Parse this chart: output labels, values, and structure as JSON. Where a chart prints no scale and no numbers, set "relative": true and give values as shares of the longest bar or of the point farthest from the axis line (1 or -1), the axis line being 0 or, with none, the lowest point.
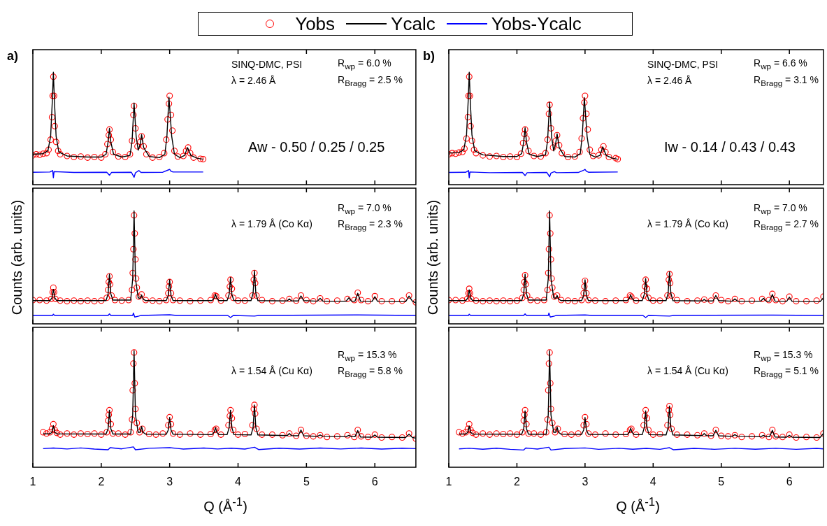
{
  "chart_data": [
    {
      "type": "line",
      "relative": true,
      "xlim": [
        1,
        6.6
      ],
      "xticks": [
        1,
        2,
        3,
        4,
        5,
        6
      ],
      "tick_labels": false,
      "legend": "top",
      "annotations": [
        "a)",
        "SINQ-DMC, PSI",
        "λ = 2.46 Å",
        "R$_{wp}$ = 6.0 %",
        "R$_{Bragg}$ = 2.5 %",
        "Aw - 0.50 / 0.25 / 0.25"
      ],
      "series": [
        {
          "name": "Yobs",
          "type": "scatter",
          "marker": "circle",
          "color": "#ff0000",
          "x": [
            1.0,
            1.05,
            1.1,
            1.15,
            1.2,
            1.23,
            1.26,
            1.28,
            1.29,
            1.3,
            1.31,
            1.32,
            1.34,
            1.37,
            1.4,
            1.5,
            1.6,
            1.7,
            1.8,
            1.9,
            2.0,
            2.06,
            2.09,
            2.11,
            2.12,
            2.14,
            2.17,
            2.25,
            2.35,
            2.42,
            2.45,
            2.47,
            2.48,
            2.5,
            2.53,
            2.57,
            2.59,
            2.62,
            2.66,
            2.75,
            2.85,
            2.92,
            2.95,
            2.97,
            2.99,
            3.0,
            3.02,
            3.04,
            3.07,
            3.12,
            3.2,
            3.24,
            3.27,
            3.3,
            3.35,
            3.45,
            3.49
          ],
          "values": [
            0.26,
            0.27,
            0.265,
            0.275,
            0.28,
            0.31,
            0.4,
            0.6,
            0.79,
            0.96,
            0.79,
            0.52,
            0.38,
            0.3,
            0.27,
            0.255,
            0.245,
            0.25,
            0.24,
            0.245,
            0.24,
            0.27,
            0.36,
            0.44,
            0.49,
            0.4,
            0.29,
            0.25,
            0.245,
            0.27,
            0.39,
            0.62,
            0.7,
            0.5,
            0.34,
            0.38,
            0.43,
            0.34,
            0.27,
            0.24,
            0.245,
            0.28,
            0.4,
            0.58,
            0.72,
            0.79,
            0.62,
            0.48,
            0.3,
            0.25,
            0.255,
            0.3,
            0.33,
            0.28,
            0.24,
            0.23,
            0.226
          ]
        },
        {
          "name": "Ycalc",
          "type": "line",
          "color": "#000000",
          "x": [
            1.0,
            1.15,
            1.22,
            1.26,
            1.285,
            1.3,
            1.315,
            1.34,
            1.38,
            1.5,
            1.8,
            2.0,
            2.07,
            2.1,
            2.12,
            2.14,
            2.18,
            2.3,
            2.42,
            2.45,
            2.48,
            2.51,
            2.54,
            2.57,
            2.59,
            2.62,
            2.7,
            2.85,
            2.93,
            2.96,
            2.99,
            3.03,
            3.07,
            3.15,
            3.22,
            3.26,
            3.31,
            3.4,
            3.49
          ],
          "values": [
            0.27,
            0.275,
            0.3,
            0.43,
            0.75,
            1.0,
            0.75,
            0.43,
            0.29,
            0.255,
            0.245,
            0.245,
            0.27,
            0.38,
            0.5,
            0.38,
            0.27,
            0.245,
            0.26,
            0.38,
            0.726,
            0.43,
            0.306,
            0.36,
            0.444,
            0.33,
            0.25,
            0.24,
            0.27,
            0.43,
            0.778,
            0.43,
            0.27,
            0.24,
            0.26,
            0.33,
            0.26,
            0.235,
            0.226
          ]
        },
        {
          "name": "Yobs-Ycalc",
          "type": "line",
          "color": "#0000ff",
          "x": [
            1.0,
            1.25,
            1.29,
            1.3,
            1.31,
            1.6,
            2.08,
            2.12,
            2.15,
            2.44,
            2.48,
            2.5,
            2.55,
            2.58,
            2.9,
            2.98,
            3.0,
            3.02,
            3.05,
            3.49
          ],
          "values": [
            0.11,
            0.112,
            0.125,
            0.06,
            0.115,
            0.108,
            0.11,
            0.083,
            0.108,
            0.11,
            0.065,
            0.105,
            0.125,
            0.108,
            0.11,
            0.13,
            0.135,
            0.118,
            0.112,
            0.112
          ]
        }
      ]
    },
    {
      "type": "line",
      "relative": true,
      "xlim": [
        1,
        6.6
      ],
      "xticks": [
        1,
        2,
        3,
        4,
        5,
        6
      ],
      "tick_labels": false,
      "ylabel": "Counts (arb. units)",
      "annotations": [
        "λ = 1.79 Å (Co Kα)",
        "R$_{wp}$ = 7.0 %",
        "R$_{Bragg}$ = 2.3 %"
      ],
      "series": [
        {
          "type": "scatter",
          "marker": "circle",
          "color": "#ff0000",
          "x": [
            1.0,
            1.1,
            1.2,
            1.27,
            1.29,
            1.3,
            1.31,
            1.33,
            1.4,
            1.5,
            1.6,
            1.7,
            1.8,
            1.9,
            2.0,
            2.08,
            2.1,
            2.11,
            2.12,
            2.13,
            2.15,
            2.2,
            2.3,
            2.4,
            2.45,
            2.46,
            2.47,
            2.48,
            2.49,
            2.5,
            2.51,
            2.52,
            2.55,
            2.59,
            2.65,
            2.75,
            2.85,
            2.95,
            2.98,
            2.99,
            3.0,
            3.02,
            3.05,
            3.15,
            3.3,
            3.45,
            3.6,
            3.66,
            3.68,
            3.75,
            3.86,
            3.88,
            3.89,
            3.91,
            3.93,
            4.0,
            4.1,
            4.21,
            4.23,
            4.24,
            4.25,
            4.27,
            4.35,
            4.5,
            4.65,
            4.75,
            4.85,
            4.92,
            5.0,
            5.1,
            5.2,
            5.3,
            5.45,
            5.6,
            5.7,
            5.75,
            5.8,
            5.9,
            6.0,
            6.1,
            6.25,
            6.4,
            6.5,
            6.6
          ],
          "values": [
            0.21,
            0.21,
            0.205,
            0.22,
            0.28,
            0.32,
            0.28,
            0.22,
            0.205,
            0.2,
            0.205,
            0.2,
            0.205,
            0.2,
            0.205,
            0.23,
            0.3,
            0.37,
            0.42,
            0.35,
            0.25,
            0.21,
            0.205,
            0.21,
            0.3,
            0.45,
            0.66,
            0.96,
            0.8,
            0.57,
            0.4,
            0.32,
            0.24,
            0.26,
            0.21,
            0.205,
            0.2,
            0.21,
            0.27,
            0.33,
            0.37,
            0.27,
            0.21,
            0.205,
            0.2,
            0.205,
            0.21,
            0.25,
            0.245,
            0.205,
            0.25,
            0.33,
            0.39,
            0.31,
            0.23,
            0.205,
            0.205,
            0.25,
            0.39,
            0.45,
            0.36,
            0.25,
            0.21,
            0.2,
            0.205,
            0.22,
            0.205,
            0.25,
            0.21,
            0.2,
            0.225,
            0.2,
            0.205,
            0.22,
            0.21,
            0.275,
            0.21,
            0.2,
            0.245,
            0.2,
            0.2,
            0.205,
            0.25,
            0.19
          ]
        },
        {
          "type": "line",
          "color": "#000000",
          "x": [
            1.0,
            1.25,
            1.28,
            1.3,
            1.32,
            1.35,
            2.07,
            2.1,
            2.12,
            2.14,
            2.17,
            2.43,
            2.46,
            2.48,
            2.5,
            2.54,
            2.57,
            2.59,
            2.61,
            2.65,
            2.95,
            2.98,
            3.0,
            3.02,
            3.05,
            3.62,
            3.65,
            3.67,
            3.69,
            3.72,
            3.84,
            3.87,
            3.89,
            3.91,
            3.94,
            4.19,
            4.22,
            4.24,
            4.26,
            4.29,
            4.72,
            4.75,
            4.78,
            4.88,
            4.92,
            4.96,
            5.16,
            5.2,
            5.24,
            5.58,
            5.62,
            5.66,
            5.71,
            5.75,
            5.79,
            5.96,
            6.0,
            6.04,
            6.45,
            6.5,
            6.55,
            6.6
          ],
          "values": [
            0.205,
            0.205,
            0.23,
            0.305,
            0.23,
            0.205,
            0.205,
            0.265,
            0.44,
            0.265,
            0.21,
            0.21,
            0.4,
            1.0,
            0.4,
            0.23,
            0.225,
            0.255,
            0.22,
            0.205,
            0.205,
            0.25,
            0.39,
            0.25,
            0.205,
            0.205,
            0.225,
            0.262,
            0.225,
            0.205,
            0.205,
            0.26,
            0.41,
            0.26,
            0.205,
            0.205,
            0.27,
            0.47,
            0.27,
            0.205,
            0.202,
            0.22,
            0.202,
            0.202,
            0.247,
            0.205,
            0.2,
            0.225,
            0.2,
            0.2,
            0.23,
            0.2,
            0.2,
            0.27,
            0.2,
            0.198,
            0.24,
            0.198,
            0.195,
            0.245,
            0.2,
            0.185
          ]
        },
        {
          "type": "line",
          "color": "#0000ff",
          "x": [
            1.0,
            1.29,
            1.3,
            1.32,
            2.1,
            2.12,
            2.14,
            2.46,
            2.47,
            2.49,
            2.55,
            2.58,
            3.0,
            3.1,
            3.85,
            3.89,
            3.93,
            4.24,
            4.3,
            5.75,
            6.6
          ],
          "values": [
            0.074,
            0.074,
            0.085,
            0.074,
            0.074,
            0.088,
            0.074,
            0.074,
            0.095,
            0.06,
            0.068,
            0.074,
            0.08,
            0.074,
            0.074,
            0.055,
            0.074,
            0.068,
            0.074,
            0.078,
            0.074
          ]
        }
      ]
    },
    {
      "type": "line",
      "relative": true,
      "xlim": [
        1,
        6.6
      ],
      "xticks": [
        1,
        2,
        3,
        4,
        5,
        6
      ],
      "tick_labels": "x",
      "xlabel": "Q (Å$^{-1}$)",
      "annotations": [
        "λ = 1.54 Å (Cu Kα)",
        "R$_{wp}$ = 15.3 %",
        "R$_{Bragg}$ = 5.8 %"
      ],
      "series": [
        {
          "type": "scatter",
          "marker": "circle",
          "color": "#ff0000",
          "x": [
            1.15,
            1.2,
            1.25,
            1.28,
            1.3,
            1.32,
            1.35,
            1.4,
            1.5,
            1.6,
            1.7,
            1.8,
            1.9,
            2.0,
            2.08,
            2.1,
            2.11,
            2.12,
            2.14,
            2.17,
            2.25,
            2.35,
            2.43,
            2.45,
            2.46,
            2.47,
            2.48,
            2.49,
            2.5,
            2.52,
            2.56,
            2.6,
            2.7,
            2.8,
            2.9,
            2.98,
            3.0,
            3.02,
            3.05,
            3.15,
            3.3,
            3.45,
            3.6,
            3.66,
            3.68,
            3.75,
            3.86,
            3.88,
            3.89,
            3.91,
            3.93,
            4.0,
            4.1,
            4.21,
            4.23,
            4.24,
            4.25,
            4.27,
            4.35,
            4.5,
            4.65,
            4.75,
            4.85,
            4.92,
            5.0,
            5.1,
            5.2,
            5.3,
            5.45,
            5.6,
            5.7,
            5.75,
            5.8,
            5.9,
            6.0,
            6.1,
            6.25,
            6.4,
            6.5,
            6.6
          ],
          "values": [
            0.3,
            0.29,
            0.3,
            0.33,
            0.37,
            0.32,
            0.295,
            0.28,
            0.29,
            0.28,
            0.29,
            0.285,
            0.29,
            0.28,
            0.3,
            0.4,
            0.45,
            0.49,
            0.37,
            0.29,
            0.29,
            0.28,
            0.3,
            0.41,
            0.66,
            0.89,
            0.985,
            0.72,
            0.5,
            0.38,
            0.3,
            0.33,
            0.285,
            0.28,
            0.29,
            0.36,
            0.43,
            0.37,
            0.29,
            0.28,
            0.29,
            0.28,
            0.285,
            0.32,
            0.33,
            0.28,
            0.36,
            0.44,
            0.49,
            0.42,
            0.32,
            0.28,
            0.285,
            0.36,
            0.5,
            0.535,
            0.46,
            0.33,
            0.28,
            0.28,
            0.275,
            0.29,
            0.27,
            0.32,
            0.27,
            0.265,
            0.275,
            0.26,
            0.265,
            0.275,
            0.26,
            0.32,
            0.265,
            0.26,
            0.28,
            0.255,
            0.26,
            0.255,
            0.29,
            0.245
          ]
        },
        {
          "type": "line",
          "color": "#000000",
          "x": [
            1.15,
            1.25,
            1.28,
            1.3,
            1.32,
            1.35,
            2.07,
            2.1,
            2.12,
            2.14,
            2.17,
            2.43,
            2.46,
            2.48,
            2.5,
            2.54,
            2.57,
            2.59,
            2.61,
            2.65,
            2.95,
            2.98,
            3.0,
            3.02,
            3.05,
            3.62,
            3.65,
            3.67,
            3.69,
            3.72,
            3.84,
            3.87,
            3.89,
            3.91,
            3.94,
            4.19,
            4.22,
            4.24,
            4.26,
            4.29,
            4.72,
            4.75,
            4.78,
            4.88,
            4.92,
            4.96,
            5.16,
            5.2,
            5.24,
            5.58,
            5.62,
            5.66,
            5.71,
            5.75,
            5.79,
            5.96,
            6.0,
            6.04,
            6.45,
            6.5,
            6.55,
            6.6
          ],
          "values": [
            0.287,
            0.287,
            0.3,
            0.358,
            0.3,
            0.287,
            0.285,
            0.33,
            0.49,
            0.33,
            0.285,
            0.285,
            0.45,
            1.0,
            0.45,
            0.3,
            0.3,
            0.35,
            0.3,
            0.284,
            0.283,
            0.32,
            0.428,
            0.32,
            0.283,
            0.28,
            0.3,
            0.34,
            0.3,
            0.28,
            0.28,
            0.34,
            0.49,
            0.34,
            0.28,
            0.278,
            0.34,
            0.534,
            0.34,
            0.278,
            0.272,
            0.29,
            0.272,
            0.27,
            0.32,
            0.27,
            0.265,
            0.277,
            0.265,
            0.262,
            0.274,
            0.262,
            0.262,
            0.315,
            0.26,
            0.258,
            0.277,
            0.258,
            0.255,
            0.283,
            0.255,
            0.25
          ]
        },
        {
          "type": "line",
          "color": "#0000ff",
          "x": [
            1.15,
            1.3,
            1.5,
            1.7,
            1.9,
            2.1,
            2.13,
            2.3,
            2.47,
            2.5,
            2.7,
            3.0,
            3.2,
            3.5,
            3.7,
            3.9,
            4.1,
            4.24,
            4.3,
            4.6,
            4.9,
            5.2,
            5.5,
            5.8,
            6.1,
            6.4,
            6.6
          ],
          "values": [
            0.16,
            0.165,
            0.157,
            0.166,
            0.156,
            0.15,
            0.168,
            0.158,
            0.175,
            0.15,
            0.163,
            0.168,
            0.156,
            0.165,
            0.157,
            0.164,
            0.156,
            0.172,
            0.152,
            0.164,
            0.156,
            0.165,
            0.157,
            0.165,
            0.156,
            0.164,
            0.16
          ]
        }
      ]
    },
    {
      "type": "line",
      "relative": true,
      "xlim": [
        1,
        6.5
      ],
      "xticks": [
        1,
        2,
        3,
        4,
        5,
        6
      ],
      "tick_labels": false,
      "annotations": [
        "b)",
        "SINQ-DMC, PSI",
        "λ = 2.46 Å",
        "R$_{wp}$ = 6.6 %",
        "R$_{Bragg}$ = 3.1 %",
        "Iw - 0.14 / 0.43 / 0.43"
      ],
      "series": [
        {
          "type": "scatter",
          "marker": "circle",
          "color": "#ff0000",
          "x": [
            1.0,
            1.05,
            1.1,
            1.15,
            1.2,
            1.23,
            1.26,
            1.28,
            1.29,
            1.3,
            1.31,
            1.32,
            1.34,
            1.37,
            1.4,
            1.5,
            1.6,
            1.7,
            1.8,
            1.9,
            2.0,
            2.06,
            2.09,
            2.11,
            2.12,
            2.14,
            2.17,
            2.25,
            2.35,
            2.42,
            2.45,
            2.47,
            2.48,
            2.5,
            2.53,
            2.57,
            2.59,
            2.62,
            2.66,
            2.75,
            2.85,
            2.92,
            2.95,
            2.97,
            2.99,
            3.0,
            3.02,
            3.04,
            3.07,
            3.12,
            3.2,
            3.24,
            3.27,
            3.3,
            3.35,
            3.45,
            3.48
          ],
          "values": [
            0.27,
            0.28,
            0.275,
            0.285,
            0.29,
            0.32,
            0.41,
            0.6,
            0.79,
            0.96,
            0.79,
            0.52,
            0.39,
            0.31,
            0.28,
            0.26,
            0.25,
            0.255,
            0.245,
            0.25,
            0.245,
            0.275,
            0.37,
            0.45,
            0.49,
            0.41,
            0.3,
            0.255,
            0.25,
            0.28,
            0.4,
            0.63,
            0.71,
            0.5,
            0.33,
            0.39,
            0.44,
            0.35,
            0.28,
            0.245,
            0.25,
            0.29,
            0.41,
            0.59,
            0.73,
            0.79,
            0.63,
            0.49,
            0.31,
            0.255,
            0.26,
            0.31,
            0.34,
            0.29,
            0.245,
            0.235,
            0.226
          ]
        },
        {
          "type": "line",
          "color": "#000000",
          "x": [
            1.0,
            1.15,
            1.22,
            1.26,
            1.285,
            1.3,
            1.315,
            1.34,
            1.38,
            1.5,
            1.8,
            2.0,
            2.07,
            2.1,
            2.12,
            2.14,
            2.18,
            2.3,
            2.42,
            2.45,
            2.48,
            2.51,
            2.54,
            2.57,
            2.59,
            2.62,
            2.7,
            2.85,
            2.93,
            2.96,
            2.99,
            3.03,
            3.07,
            3.15,
            3.22,
            3.26,
            3.31,
            3.4,
            3.48
          ],
          "values": [
            0.28,
            0.285,
            0.31,
            0.44,
            0.75,
            1.0,
            0.75,
            0.44,
            0.3,
            0.265,
            0.25,
            0.25,
            0.275,
            0.38,
            0.506,
            0.38,
            0.27,
            0.25,
            0.265,
            0.39,
            0.732,
            0.42,
            0.3,
            0.37,
            0.452,
            0.33,
            0.25,
            0.245,
            0.275,
            0.44,
            0.774,
            0.43,
            0.27,
            0.245,
            0.26,
            0.335,
            0.26,
            0.235,
            0.226
          ]
        },
        {
          "type": "line",
          "color": "#0000ff",
          "x": [
            1.0,
            1.25,
            1.29,
            1.3,
            1.31,
            1.6,
            2.08,
            2.12,
            2.15,
            2.44,
            2.48,
            2.5,
            2.55,
            2.58,
            2.9,
            2.98,
            3.0,
            3.02,
            3.05,
            3.48
          ],
          "values": [
            0.108,
            0.11,
            0.125,
            0.06,
            0.112,
            0.106,
            0.108,
            0.08,
            0.106,
            0.108,
            0.07,
            0.103,
            0.115,
            0.106,
            0.108,
            0.128,
            0.135,
            0.118,
            0.11,
            0.112
          ]
        }
      ]
    },
    {
      "type": "line",
      "relative": true,
      "xlim": [
        1,
        6.5
      ],
      "xticks": [
        1,
        2,
        3,
        4,
        5,
        6
      ],
      "tick_labels": false,
      "ylabel": "Counts (arb. units)",
      "annotations": [
        "λ = 1.79 Å (Co Kα)",
        "R$_{wp}$ = 7.0 %",
        "R$_{Bragg}$ = 2.7 %"
      ],
      "series": [
        {
          "type": "scatter",
          "marker": "circle",
          "color": "#ff0000",
          "x": [
            1.0,
            1.1,
            1.2,
            1.27,
            1.29,
            1.3,
            1.31,
            1.33,
            1.4,
            1.5,
            1.6,
            1.7,
            1.8,
            1.9,
            2.0,
            2.08,
            2.1,
            2.11,
            2.12,
            2.13,
            2.15,
            2.2,
            2.3,
            2.4,
            2.45,
            2.46,
            2.47,
            2.48,
            2.49,
            2.5,
            2.51,
            2.52,
            2.55,
            2.59,
            2.65,
            2.75,
            2.85,
            2.95,
            2.98,
            2.99,
            3.0,
            3.02,
            3.05,
            3.15,
            3.3,
            3.45,
            3.6,
            3.66,
            3.68,
            3.75,
            3.86,
            3.88,
            3.89,
            3.91,
            3.93,
            4.0,
            4.1,
            4.21,
            4.23,
            4.24,
            4.25,
            4.27,
            4.35,
            4.5,
            4.65,
            4.75,
            4.85,
            4.92,
            5.0,
            5.1,
            5.2,
            5.3,
            5.45,
            5.6,
            5.7,
            5.75,
            5.8,
            5.9,
            6.0,
            6.1,
            6.25,
            6.4,
            6.5
          ],
          "values": [
            0.21,
            0.21,
            0.205,
            0.22,
            0.27,
            0.31,
            0.27,
            0.22,
            0.205,
            0.2,
            0.205,
            0.2,
            0.205,
            0.2,
            0.205,
            0.23,
            0.3,
            0.37,
            0.43,
            0.35,
            0.25,
            0.21,
            0.205,
            0.21,
            0.3,
            0.45,
            0.66,
            0.96,
            0.8,
            0.57,
            0.4,
            0.32,
            0.24,
            0.25,
            0.21,
            0.205,
            0.2,
            0.21,
            0.27,
            0.33,
            0.38,
            0.27,
            0.21,
            0.205,
            0.2,
            0.205,
            0.21,
            0.25,
            0.24,
            0.205,
            0.25,
            0.33,
            0.39,
            0.31,
            0.23,
            0.205,
            0.205,
            0.25,
            0.39,
            0.44,
            0.36,
            0.25,
            0.21,
            0.2,
            0.205,
            0.215,
            0.205,
            0.25,
            0.21,
            0.2,
            0.22,
            0.2,
            0.205,
            0.22,
            0.21,
            0.265,
            0.21,
            0.2,
            0.24,
            0.2,
            0.2,
            0.205,
            0.24
          ]
        },
        {
          "type": "line",
          "color": "#000000",
          "x": [
            1.0,
            1.25,
            1.28,
            1.3,
            1.32,
            1.35,
            2.07,
            2.1,
            2.12,
            2.14,
            2.17,
            2.43,
            2.46,
            2.48,
            2.5,
            2.54,
            2.57,
            2.59,
            2.61,
            2.65,
            2.95,
            2.98,
            3.0,
            3.02,
            3.05,
            3.62,
            3.65,
            3.67,
            3.69,
            3.72,
            3.84,
            3.87,
            3.89,
            3.91,
            3.94,
            4.19,
            4.22,
            4.24,
            4.26,
            4.29,
            4.72,
            4.75,
            4.78,
            4.88,
            4.92,
            4.96,
            5.16,
            5.2,
            5.24,
            5.58,
            5.62,
            5.66,
            5.71,
            5.75,
            5.79,
            5.96,
            6.0,
            6.04,
            6.45,
            6.5
          ],
          "values": [
            0.205,
            0.205,
            0.23,
            0.3,
            0.23,
            0.205,
            0.205,
            0.265,
            0.44,
            0.265,
            0.21,
            0.21,
            0.4,
            1.0,
            0.4,
            0.23,
            0.225,
            0.25,
            0.22,
            0.205,
            0.205,
            0.25,
            0.39,
            0.25,
            0.205,
            0.205,
            0.225,
            0.255,
            0.225,
            0.205,
            0.205,
            0.26,
            0.4,
            0.26,
            0.205,
            0.205,
            0.27,
            0.46,
            0.27,
            0.205,
            0.202,
            0.215,
            0.202,
            0.202,
            0.25,
            0.205,
            0.2,
            0.22,
            0.2,
            0.2,
            0.225,
            0.2,
            0.2,
            0.26,
            0.2,
            0.198,
            0.235,
            0.198,
            0.195,
            0.23
          ]
        },
        {
          "type": "line",
          "color": "#0000ff",
          "x": [
            1.0,
            1.29,
            1.3,
            1.32,
            2.1,
            2.12,
            2.14,
            2.46,
            2.47,
            2.49,
            2.55,
            2.58,
            3.0,
            3.1,
            3.85,
            3.89,
            3.93,
            4.24,
            4.3,
            5.75,
            6.5
          ],
          "values": [
            0.074,
            0.074,
            0.085,
            0.074,
            0.074,
            0.088,
            0.074,
            0.074,
            0.095,
            0.06,
            0.068,
            0.074,
            0.078,
            0.074,
            0.074,
            0.055,
            0.074,
            0.068,
            0.074,
            0.077,
            0.074
          ]
        }
      ]
    },
    {
      "type": "line",
      "relative": true,
      "xlim": [
        1,
        6.5
      ],
      "xticks": [
        1,
        2,
        3,
        4,
        5,
        6
      ],
      "tick_labels": "x",
      "xlabel": "Q (Å$^{-1}$)",
      "annotations": [
        "λ = 1.54 Å (Cu Kα)",
        "R$_{wp}$ = 15.3 %",
        "R$_{Bragg}$ = 5.1 %"
      ],
      "series": [
        {
          "type": "scatter",
          "marker": "circle",
          "color": "#ff0000",
          "x": [
            1.15,
            1.2,
            1.25,
            1.28,
            1.3,
            1.32,
            1.35,
            1.4,
            1.5,
            1.6,
            1.7,
            1.8,
            1.9,
            2.0,
            2.08,
            2.1,
            2.11,
            2.12,
            2.14,
            2.17,
            2.25,
            2.35,
            2.43,
            2.45,
            2.46,
            2.47,
            2.48,
            2.49,
            2.5,
            2.52,
            2.56,
            2.6,
            2.7,
            2.8,
            2.9,
            2.98,
            3.0,
            3.02,
            3.05,
            3.15,
            3.3,
            3.45,
            3.6,
            3.66,
            3.68,
            3.75,
            3.86,
            3.88,
            3.89,
            3.91,
            3.93,
            4.0,
            4.1,
            4.21,
            4.23,
            4.24,
            4.25,
            4.27,
            4.35,
            4.5,
            4.65,
            4.75,
            4.85,
            4.92,
            5.0,
            5.1,
            5.2,
            5.3,
            5.45,
            5.6,
            5.7,
            5.75,
            5.8,
            5.9,
            6.0,
            6.1,
            6.25,
            6.4,
            6.5
          ],
          "values": [
            0.3,
            0.29,
            0.3,
            0.33,
            0.37,
            0.32,
            0.295,
            0.28,
            0.29,
            0.28,
            0.29,
            0.285,
            0.29,
            0.28,
            0.3,
            0.4,
            0.45,
            0.49,
            0.37,
            0.29,
            0.29,
            0.28,
            0.3,
            0.41,
            0.66,
            0.89,
            0.985,
            0.72,
            0.5,
            0.38,
            0.3,
            0.33,
            0.285,
            0.28,
            0.29,
            0.36,
            0.43,
            0.37,
            0.29,
            0.28,
            0.29,
            0.28,
            0.285,
            0.32,
            0.33,
            0.28,
            0.36,
            0.44,
            0.49,
            0.42,
            0.32,
            0.28,
            0.285,
            0.36,
            0.49,
            0.525,
            0.45,
            0.33,
            0.28,
            0.28,
            0.275,
            0.29,
            0.27,
            0.32,
            0.27,
            0.265,
            0.275,
            0.26,
            0.265,
            0.275,
            0.26,
            0.32,
            0.265,
            0.26,
            0.28,
            0.255,
            0.26,
            0.255,
            0.29
          ]
        },
        {
          "type": "line",
          "color": "#000000",
          "x": [
            1.15,
            1.25,
            1.28,
            1.3,
            1.32,
            1.35,
            2.07,
            2.1,
            2.12,
            2.14,
            2.17,
            2.43,
            2.46,
            2.48,
            2.5,
            2.54,
            2.57,
            2.59,
            2.61,
            2.65,
            2.95,
            2.98,
            3.0,
            3.02,
            3.05,
            3.62,
            3.65,
            3.67,
            3.69,
            3.72,
            3.84,
            3.87,
            3.89,
            3.91,
            3.94,
            4.19,
            4.22,
            4.24,
            4.26,
            4.29,
            4.72,
            4.75,
            4.78,
            4.88,
            4.92,
            4.96,
            5.16,
            5.2,
            5.24,
            5.58,
            5.62,
            5.66,
            5.71,
            5.75,
            5.79,
            5.96,
            6.0,
            6.04,
            6.45,
            6.5
          ],
          "values": [
            0.285,
            0.285,
            0.3,
            0.354,
            0.3,
            0.285,
            0.284,
            0.33,
            0.484,
            0.33,
            0.284,
            0.284,
            0.45,
            1.0,
            0.45,
            0.3,
            0.3,
            0.345,
            0.3,
            0.283,
            0.282,
            0.32,
            0.428,
            0.32,
            0.282,
            0.28,
            0.3,
            0.335,
            0.3,
            0.28,
            0.28,
            0.34,
            0.484,
            0.34,
            0.28,
            0.278,
            0.34,
            0.525,
            0.34,
            0.278,
            0.272,
            0.289,
            0.272,
            0.27,
            0.317,
            0.27,
            0.265,
            0.28,
            0.265,
            0.262,
            0.274,
            0.262,
            0.262,
            0.317,
            0.26,
            0.258,
            0.274,
            0.258,
            0.255,
            0.29
          ]
        },
        {
          "type": "line",
          "color": "#0000ff",
          "x": [
            1.15,
            1.3,
            1.5,
            1.7,
            1.9,
            2.1,
            2.13,
            2.3,
            2.47,
            2.5,
            2.7,
            3.0,
            3.2,
            3.5,
            3.7,
            3.9,
            4.1,
            4.24,
            4.3,
            4.6,
            4.9,
            5.2,
            5.5,
            5.8,
            6.1,
            6.4,
            6.5
          ],
          "values": [
            0.158,
            0.163,
            0.155,
            0.164,
            0.154,
            0.148,
            0.165,
            0.156,
            0.172,
            0.148,
            0.161,
            0.166,
            0.154,
            0.163,
            0.155,
            0.162,
            0.154,
            0.168,
            0.15,
            0.162,
            0.154,
            0.163,
            0.155,
            0.163,
            0.154,
            0.162,
            0.158
          ]
        }
      ]
    }
  ]
}
